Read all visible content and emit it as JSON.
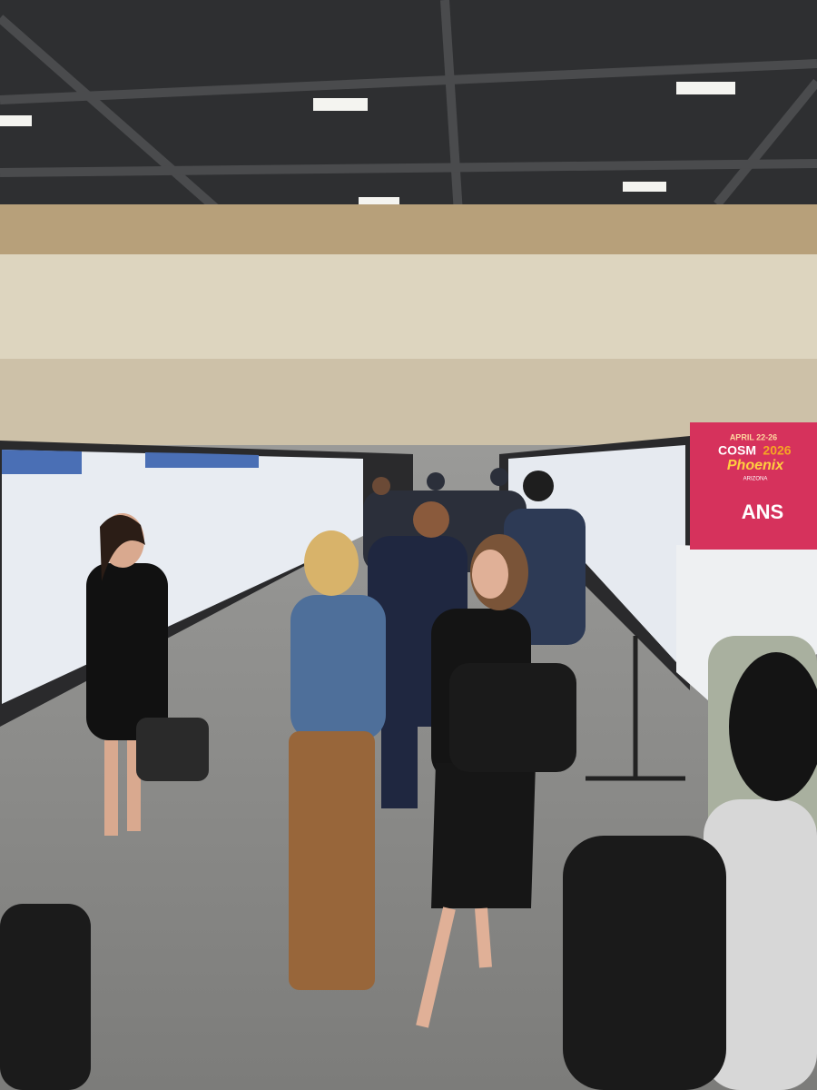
{
  "sign": {
    "dates": "APRIL 22-26",
    "event": "COSM",
    "year": "2026",
    "city": "Phoenix",
    "state": "ARIZONA",
    "label": "ANS"
  }
}
